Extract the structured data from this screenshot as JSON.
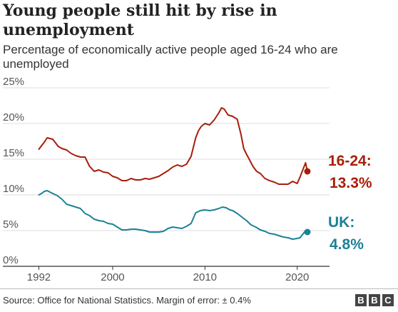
{
  "chart_data": {
    "type": "line",
    "title": "Young people still hit by rise in unemployment",
    "subtitle": "Percentage of economically active people aged 16-24 who are unemployed",
    "ylim": [
      0,
      25
    ],
    "xlim": [
      1991.5,
      2023.5
    ],
    "yticks": [
      0,
      5,
      10,
      15,
      20,
      25
    ],
    "yticklabels": [
      "0%",
      "5%",
      "10%",
      "15%",
      "20%",
      "25%"
    ],
    "xticks": [
      1992,
      2000,
      2010,
      2020
    ],
    "xticklabels": [
      "1992",
      "2000",
      "2010",
      "2020"
    ],
    "grid": true,
    "series": [
      {
        "name": "16-24",
        "color": "#a81e0b",
        "end_label": "16-24:",
        "end_value": "13.3%",
        "x": [
          1992.0,
          1992.3,
          1992.6,
          1992.9,
          1993.2,
          1993.5,
          1993.8,
          1994.1,
          1994.5,
          1995.0,
          1995.5,
          1996.0,
          1996.5,
          1997.0,
          1997.5,
          1998.0,
          1998.5,
          1999.0,
          1999.5,
          2000.0,
          2000.5,
          2001.0,
          2001.5,
          2002.0,
          2002.5,
          2003.0,
          2003.5,
          2004.0,
          2004.5,
          2005.0,
          2005.5,
          2006.0,
          2006.5,
          2007.0,
          2007.5,
          2008.0,
          2008.5,
          2009.0,
          2009.3,
          2009.6,
          2010.0,
          2010.5,
          2011.0,
          2011.5,
          2011.8,
          2012.1,
          2012.5,
          2013.0,
          2013.5,
          2013.9,
          2014.2,
          2014.5,
          2014.8,
          2015.2,
          2015.6,
          2016.0,
          2016.5,
          2017.0,
          2017.5,
          2018.0,
          2018.5,
          2019.0,
          2019.5,
          2020.0,
          2020.3,
          2020.6,
          2020.9,
          2021.1
        ],
        "values": [
          16.4,
          16.9,
          17.4,
          18.0,
          17.9,
          17.8,
          17.3,
          16.8,
          16.5,
          16.3,
          15.8,
          15.5,
          15.3,
          15.3,
          14.0,
          13.3,
          13.5,
          13.2,
          13.1,
          12.6,
          12.4,
          12.0,
          12.0,
          12.3,
          12.1,
          12.1,
          12.3,
          12.2,
          12.4,
          12.6,
          13.0,
          13.4,
          13.9,
          14.2,
          14.0,
          14.3,
          15.4,
          18.0,
          19.0,
          19.6,
          20.0,
          19.8,
          20.5,
          21.5,
          22.2,
          22.0,
          21.2,
          21.0,
          20.6,
          18.5,
          16.5,
          15.7,
          15.0,
          14.0,
          13.3,
          13.0,
          12.3,
          12.0,
          11.8,
          11.5,
          11.5,
          11.5,
          11.9,
          11.6,
          12.5,
          13.5,
          14.5,
          13.3
        ]
      },
      {
        "name": "UK",
        "color": "#1b8197",
        "end_label": "UK:",
        "end_value": "4.8%",
        "x": [
          1992.0,
          1992.3,
          1992.6,
          1992.9,
          1993.2,
          1993.5,
          1994.0,
          1994.5,
          1995.0,
          1995.5,
          1996.0,
          1996.5,
          1997.0,
          1997.5,
          1998.0,
          1998.5,
          1999.0,
          1999.5,
          2000.0,
          2000.5,
          2001.0,
          2001.5,
          2002.0,
          2002.5,
          2003.0,
          2003.5,
          2004.0,
          2004.5,
          2005.0,
          2005.5,
          2006.0,
          2006.5,
          2007.0,
          2007.5,
          2008.0,
          2008.5,
          2009.0,
          2009.5,
          2010.0,
          2010.5,
          2011.0,
          2011.5,
          2011.9,
          2012.3,
          2012.7,
          2013.0,
          2013.5,
          2014.0,
          2014.5,
          2015.0,
          2015.5,
          2016.0,
          2016.5,
          2017.0,
          2017.5,
          2018.0,
          2018.5,
          2019.0,
          2019.5,
          2020.0,
          2020.3,
          2020.6,
          2020.9,
          2021.1
        ],
        "values": [
          10.0,
          10.2,
          10.5,
          10.6,
          10.4,
          10.2,
          9.9,
          9.4,
          8.7,
          8.5,
          8.3,
          8.1,
          7.4,
          7.1,
          6.6,
          6.4,
          6.3,
          6.0,
          5.9,
          5.5,
          5.1,
          5.1,
          5.2,
          5.2,
          5.1,
          5.0,
          4.8,
          4.8,
          4.8,
          4.9,
          5.3,
          5.5,
          5.4,
          5.3,
          5.6,
          6.0,
          7.5,
          7.8,
          7.9,
          7.8,
          7.9,
          8.1,
          8.3,
          8.2,
          7.9,
          7.8,
          7.4,
          6.9,
          6.4,
          5.8,
          5.5,
          5.1,
          4.9,
          4.6,
          4.5,
          4.3,
          4.1,
          4.0,
          3.8,
          3.9,
          4.0,
          4.5,
          5.0,
          4.8
        ]
      }
    ]
  },
  "footer": {
    "source": "Source: Office for National Statistics. Margin of error: ± 0.4%",
    "logo_letters": [
      "B",
      "B",
      "C"
    ]
  }
}
